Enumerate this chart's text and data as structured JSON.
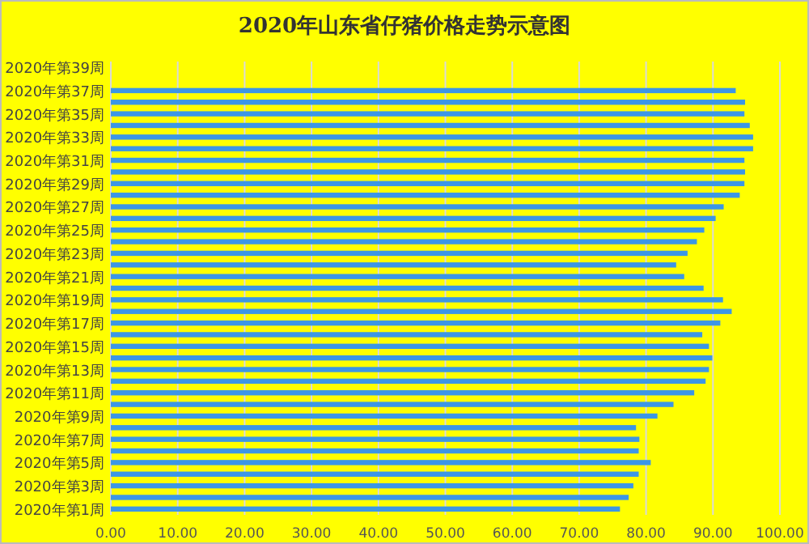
{
  "chart_data": {
    "type": "bar",
    "orientation": "horizontal",
    "title": "2020年山东省仔猪价格走势示意图",
    "categories": [
      "2020年第39周",
      null,
      "2020年第37周",
      null,
      "2020年第35周",
      null,
      "2020年第33周",
      null,
      "2020年第31周",
      null,
      "2020年第29周",
      null,
      "2020年第27周",
      null,
      "2020年第25周",
      null,
      "2020年第23周",
      null,
      "2020年第21周",
      null,
      "2020年第19周",
      null,
      "2020年第17周",
      null,
      "2020年第15周",
      null,
      "2020年第13周",
      null,
      "2020年第11周",
      null,
      "2020年第9周",
      null,
      "2020年第7周",
      null,
      "2020年第5周",
      null,
      "2020年第3周",
      null,
      "2020年第1周"
    ],
    "values": [
      null,
      null,
      93.4,
      94.8,
      94.7,
      95.5,
      96.0,
      96.0,
      94.7,
      94.8,
      94.7,
      94.0,
      91.6,
      90.4,
      88.7,
      87.6,
      86.2,
      84.5,
      85.7,
      88.6,
      91.5,
      92.8,
      91.1,
      88.4,
      89.4,
      89.9,
      89.4,
      88.9,
      87.2,
      84.1,
      81.7,
      78.5,
      79.0,
      78.9,
      80.7,
      78.9,
      78.1,
      77.4,
      76.1
    ],
    "color": "#3c96e6",
    "xlim": [
      0,
      100
    ],
    "xticks": [
      {
        "value": 0,
        "label": "0.00"
      },
      {
        "value": 10,
        "label": "10.00"
      },
      {
        "value": 20,
        "label": "20.00"
      },
      {
        "value": 30,
        "label": "30.00"
      },
      {
        "value": 40,
        "label": "40.00"
      },
      {
        "value": 50,
        "label": "50.00"
      },
      {
        "value": 60,
        "label": "60.00"
      },
      {
        "value": 70,
        "label": "70.00"
      },
      {
        "value": 80,
        "label": "80.00"
      },
      {
        "value": 90,
        "label": "90.00"
      },
      {
        "value": 100,
        "label": "100.00"
      }
    ],
    "grid": "x"
  }
}
